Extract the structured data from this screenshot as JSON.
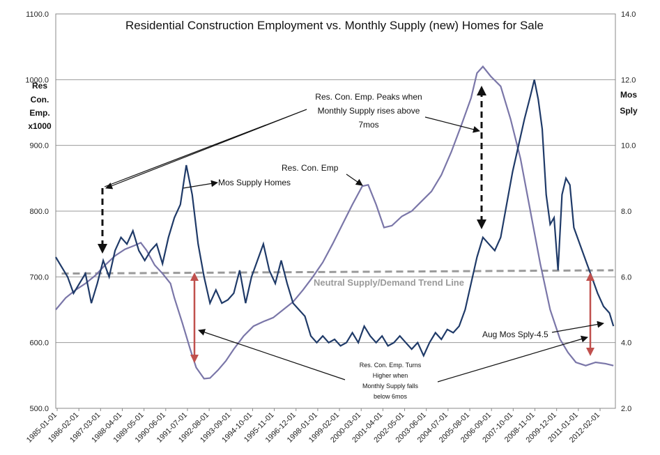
{
  "chart_data": {
    "type": "line",
    "title": "Residential Construction Employment vs. Monthly Supply (new) Homes for Sale",
    "y_left": {
      "label_lines": [
        "Res",
        "Con.",
        "Emp.",
        "x1000"
      ],
      "ticks": [
        "500.0",
        "600.0",
        "700.0",
        "800.0",
        "900.0",
        "1000.0",
        "1100.0"
      ],
      "ylim": [
        500,
        1100
      ]
    },
    "y_right": {
      "label_lines": [
        "Mos",
        "Sply"
      ],
      "ticks": [
        "2.0",
        "4.0",
        "6.0",
        "8.0",
        "10.0",
        "12.0",
        "14.0"
      ],
      "ylim": [
        2,
        14
      ]
    },
    "x_ticks": [
      "1985-01-01",
      "1986-02-01",
      "1987-03-01",
      "1988-04-01",
      "1989-05-01",
      "1990-06-01",
      "1991-07-01",
      "1992-08-01",
      "1993-09-01",
      "1994-10-01",
      "1995-11-01",
      "1996-12-01",
      "1998-01-01",
      "1999-02-01",
      "2000-03-01",
      "2001-04-01",
      "2002-05-01",
      "2003-06-01",
      "2004-07-01",
      "2005-08-01",
      "2006-09-01",
      "2007-10-01",
      "2008-11-01",
      "2009-12-01",
      "2011-01-01",
      "2012-02-01"
    ],
    "xlim": [
      1985.0,
      2013.3
    ],
    "grid": true,
    "series": [
      {
        "name": "Res. Con. Emp",
        "axis": "left",
        "color": "#7a76a8",
        "points": [
          [
            1985.0,
            650
          ],
          [
            1985.5,
            668
          ],
          [
            1986.0,
            680
          ],
          [
            1986.5,
            690
          ],
          [
            1987.0,
            702
          ],
          [
            1987.5,
            718
          ],
          [
            1988.0,
            732
          ],
          [
            1988.5,
            742
          ],
          [
            1989.0,
            748
          ],
          [
            1989.3,
            752
          ],
          [
            1989.6,
            740
          ],
          [
            1990.0,
            718
          ],
          [
            1990.4,
            705
          ],
          [
            1990.8,
            690
          ],
          [
            1991.0,
            668
          ],
          [
            1991.4,
            630
          ],
          [
            1991.8,
            590
          ],
          [
            1992.1,
            562
          ],
          [
            1992.5,
            545
          ],
          [
            1992.8,
            546
          ],
          [
            1993.2,
            558
          ],
          [
            1993.6,
            572
          ],
          [
            1994.0,
            590
          ],
          [
            1994.5,
            610
          ],
          [
            1995.0,
            625
          ],
          [
            1995.5,
            632
          ],
          [
            1996.0,
            638
          ],
          [
            1996.5,
            650
          ],
          [
            1997.0,
            662
          ],
          [
            1997.5,
            680
          ],
          [
            1998.0,
            700
          ],
          [
            1998.5,
            722
          ],
          [
            1999.0,
            750
          ],
          [
            1999.5,
            780
          ],
          [
            2000.0,
            810
          ],
          [
            2000.5,
            838
          ],
          [
            2000.8,
            840
          ],
          [
            2001.2,
            810
          ],
          [
            2001.6,
            775
          ],
          [
            2002.0,
            778
          ],
          [
            2002.5,
            792
          ],
          [
            2003.0,
            800
          ],
          [
            2003.5,
            815
          ],
          [
            2004.0,
            830
          ],
          [
            2004.5,
            855
          ],
          [
            2005.0,
            890
          ],
          [
            2005.5,
            930
          ],
          [
            2006.0,
            972
          ],
          [
            2006.3,
            1010
          ],
          [
            2006.6,
            1020
          ],
          [
            2007.0,
            1005
          ],
          [
            2007.5,
            990
          ],
          [
            2008.0,
            940
          ],
          [
            2008.5,
            880
          ],
          [
            2009.0,
            800
          ],
          [
            2009.5,
            720
          ],
          [
            2010.0,
            650
          ],
          [
            2010.5,
            605
          ],
          [
            2010.9,
            585
          ],
          [
            2011.3,
            570
          ],
          [
            2011.8,
            565
          ],
          [
            2012.3,
            570
          ],
          [
            2012.8,
            568
          ],
          [
            2013.2,
            565
          ]
        ]
      },
      {
        "name": "Mos Supply Homes",
        "axis": "right",
        "color": "#1f3a68",
        "points": [
          [
            1985.0,
            6.6
          ],
          [
            1985.3,
            6.3
          ],
          [
            1985.6,
            6.0
          ],
          [
            1985.9,
            5.5
          ],
          [
            1986.2,
            5.8
          ],
          [
            1986.5,
            6.1
          ],
          [
            1986.8,
            5.2
          ],
          [
            1987.1,
            5.8
          ],
          [
            1987.4,
            6.5
          ],
          [
            1987.7,
            6.0
          ],
          [
            1988.0,
            6.8
          ],
          [
            1988.3,
            7.2
          ],
          [
            1988.6,
            7.0
          ],
          [
            1988.9,
            7.4
          ],
          [
            1989.2,
            6.8
          ],
          [
            1989.5,
            6.5
          ],
          [
            1989.8,
            6.8
          ],
          [
            1990.1,
            7.0
          ],
          [
            1990.4,
            6.4
          ],
          [
            1990.7,
            7.2
          ],
          [
            1991.0,
            7.8
          ],
          [
            1991.3,
            8.2
          ],
          [
            1991.6,
            9.4
          ],
          [
            1991.9,
            8.5
          ],
          [
            1992.2,
            7.0
          ],
          [
            1992.5,
            6.0
          ],
          [
            1992.8,
            5.2
          ],
          [
            1993.1,
            5.6
          ],
          [
            1993.4,
            5.2
          ],
          [
            1993.7,
            5.3
          ],
          [
            1994.0,
            5.5
          ],
          [
            1994.3,
            6.2
          ],
          [
            1994.6,
            5.2
          ],
          [
            1994.9,
            6.0
          ],
          [
            1995.2,
            6.5
          ],
          [
            1995.5,
            7.0
          ],
          [
            1995.8,
            6.2
          ],
          [
            1996.1,
            5.8
          ],
          [
            1996.4,
            6.5
          ],
          [
            1996.7,
            5.8
          ],
          [
            1997.0,
            5.2
          ],
          [
            1997.3,
            5.0
          ],
          [
            1997.6,
            4.8
          ],
          [
            1997.9,
            4.2
          ],
          [
            1998.2,
            4.0
          ],
          [
            1998.5,
            4.2
          ],
          [
            1998.8,
            4.0
          ],
          [
            1999.1,
            4.1
          ],
          [
            1999.4,
            3.9
          ],
          [
            1999.7,
            4.0
          ],
          [
            2000.0,
            4.3
          ],
          [
            2000.3,
            4.0
          ],
          [
            2000.6,
            4.5
          ],
          [
            2000.9,
            4.2
          ],
          [
            2001.2,
            4.0
          ],
          [
            2001.5,
            4.2
          ],
          [
            2001.8,
            3.9
          ],
          [
            2002.1,
            4.0
          ],
          [
            2002.4,
            4.2
          ],
          [
            2002.7,
            4.0
          ],
          [
            2003.0,
            3.8
          ],
          [
            2003.3,
            4.0
          ],
          [
            2003.6,
            3.6
          ],
          [
            2003.9,
            4.0
          ],
          [
            2004.2,
            4.3
          ],
          [
            2004.5,
            4.1
          ],
          [
            2004.8,
            4.4
          ],
          [
            2005.1,
            4.3
          ],
          [
            2005.4,
            4.5
          ],
          [
            2005.7,
            5.0
          ],
          [
            2006.0,
            5.8
          ],
          [
            2006.3,
            6.6
          ],
          [
            2006.6,
            7.2
          ],
          [
            2006.9,
            7.0
          ],
          [
            2007.2,
            6.8
          ],
          [
            2007.5,
            7.2
          ],
          [
            2007.8,
            8.2
          ],
          [
            2008.1,
            9.2
          ],
          [
            2008.4,
            10.0
          ],
          [
            2008.7,
            10.8
          ],
          [
            2009.0,
            11.5
          ],
          [
            2009.2,
            12.0
          ],
          [
            2009.4,
            11.4
          ],
          [
            2009.6,
            10.5
          ],
          [
            2009.8,
            8.5
          ],
          [
            2010.0,
            7.6
          ],
          [
            2010.2,
            7.8
          ],
          [
            2010.4,
            6.2
          ],
          [
            2010.6,
            8.5
          ],
          [
            2010.8,
            9.0
          ],
          [
            2011.0,
            8.8
          ],
          [
            2011.2,
            7.5
          ],
          [
            2011.5,
            7.0
          ],
          [
            2011.8,
            6.5
          ],
          [
            2012.1,
            6.0
          ],
          [
            2012.4,
            5.5
          ],
          [
            2012.7,
            5.1
          ],
          [
            2013.0,
            4.9
          ],
          [
            2013.2,
            4.5
          ]
        ]
      }
    ],
    "trend_line": {
      "label": "Neutral Supply/Demand Trend Line",
      "axis": "right",
      "from": [
        1985.3,
        6.1
      ],
      "to": [
        2013.2,
        6.2
      ],
      "color": "#9a9a9a"
    },
    "annotations": [
      {
        "lines": [
          "Mos Supply Homes"
        ],
        "small": false
      },
      {
        "lines": [
          "Res. Con. Emp"
        ],
        "small": false
      },
      {
        "lines": [
          "Res. Con. Emp. Peaks when",
          "Monthly Supply rises above",
          "7mos"
        ],
        "small": false
      },
      {
        "lines": [
          "Aug Mos Sply-4.5"
        ],
        "small": false
      },
      {
        "lines": [
          "Res. Con. Emp. Turns",
          "Higher when",
          "Monthly Supply falls",
          "below 6mos"
        ],
        "small": true
      }
    ]
  }
}
